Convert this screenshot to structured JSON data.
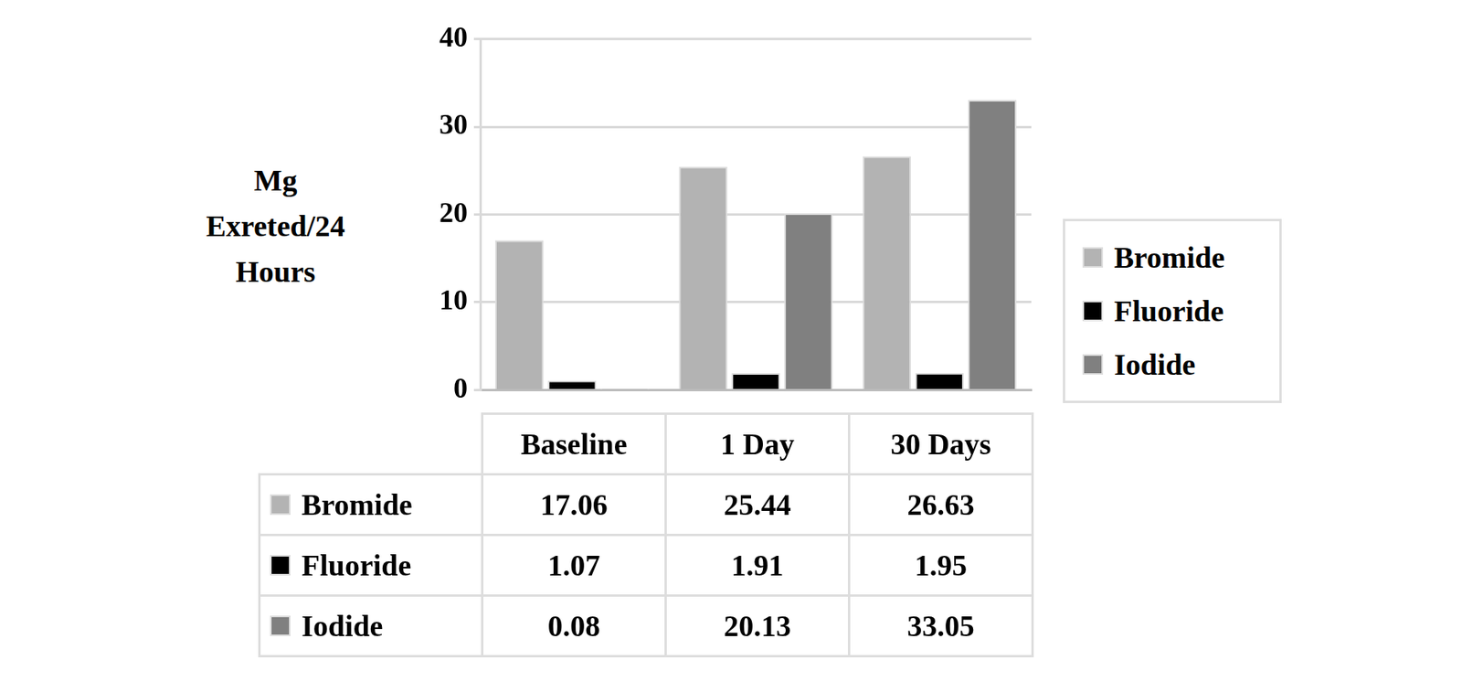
{
  "chart_data": {
    "type": "bar",
    "y_label": [
      "Mg",
      "Exreted/24",
      "Hours"
    ],
    "categories": [
      "Baseline",
      "1 Day",
      "30 Days"
    ],
    "series": [
      {
        "name": "Bromide",
        "color": "#b3b3b3",
        "values": [
          17.06,
          25.44,
          26.63
        ]
      },
      {
        "name": "Fluoride",
        "color": "#000000",
        "values": [
          1.07,
          1.91,
          1.95
        ]
      },
      {
        "name": "Iodide",
        "color": "#808080",
        "values": [
          0.08,
          20.13,
          33.05
        ]
      }
    ],
    "ylim": [
      0,
      40
    ],
    "yticks": [
      0,
      10,
      20,
      30,
      40
    ],
    "grid": true,
    "legend": "right",
    "tick_labels": "y"
  }
}
